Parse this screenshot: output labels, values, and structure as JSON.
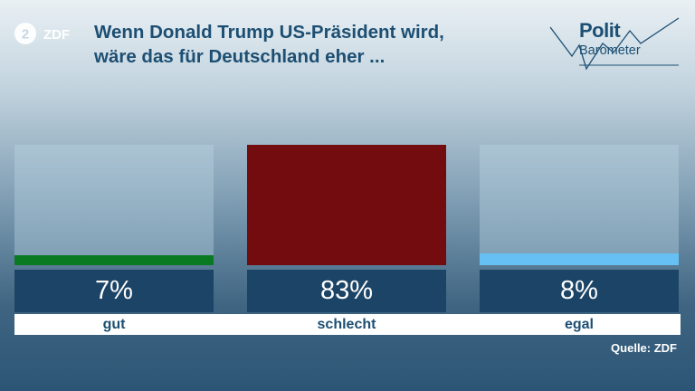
{
  "logo": {
    "zdf_text": "ZDF",
    "polit": "Polit",
    "barometer": "Barometer"
  },
  "title_lines": [
    "Wenn Donald Trump US-Präsident wird,",
    "wäre das für Deutschland eher ..."
  ],
  "source": "Quelle: ZDF",
  "colors": {
    "gut": "#0a7a22",
    "schlecht": "#730c0e",
    "egal": "#66c0f4",
    "value_box": "#1c4466",
    "title": "#1d4f73"
  },
  "chart_data": {
    "type": "bar",
    "title": "Wenn Donald Trump US-Präsident wird, wäre das für Deutschland eher ...",
    "categories": [
      "gut",
      "schlecht",
      "egal"
    ],
    "values": [
      7,
      83,
      8
    ],
    "labels": [
      "7%",
      "83%",
      "8%"
    ],
    "unit": "%",
    "ylim": [
      0,
      83
    ],
    "grid": false
  }
}
